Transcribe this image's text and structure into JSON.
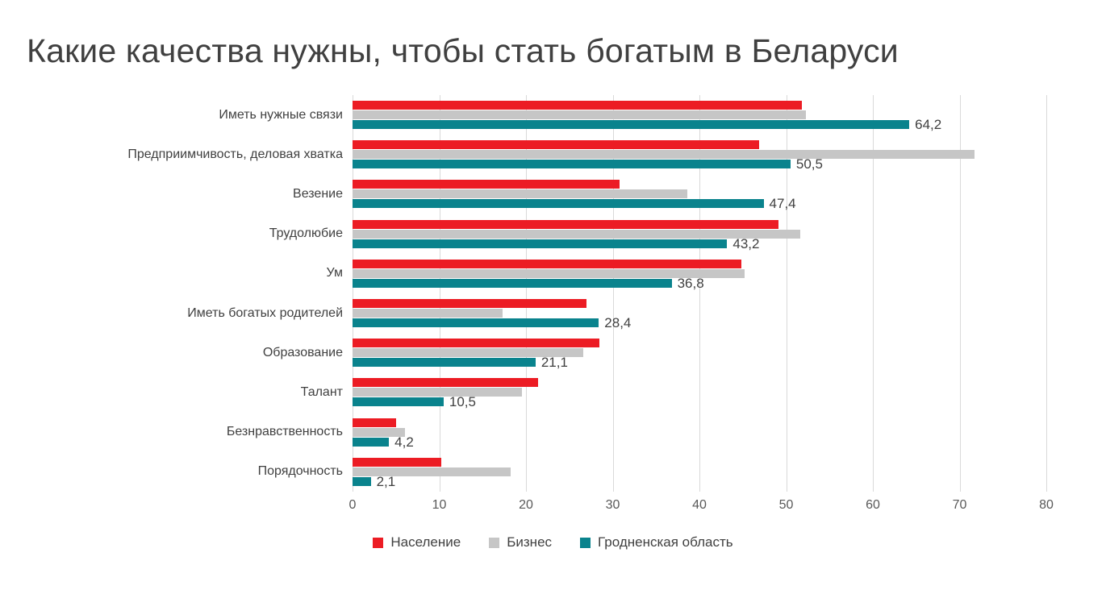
{
  "title": "Какие качества нужны, чтобы стать богатым в Беларуси",
  "colors": {
    "naselenie": "#ec1c24",
    "biznes": "#c6c6c6",
    "grodno": "#0a838d",
    "gridline": "#d9d9d9",
    "title_text": "#404040",
    "axis_text": "#595959"
  },
  "chart_data": {
    "type": "bar",
    "orientation": "horizontal",
    "title": "Какие качества нужны, чтобы стать богатым в Беларуси",
    "categories": [
      "Иметь нужные связи",
      "Предприимчивость, деловая хватка",
      "Везение",
      "Трудолюбие",
      "Ум",
      "Иметь богатых родителей",
      "Образование",
      "Талант",
      "Безнравственность",
      "Порядочность"
    ],
    "series": [
      {
        "name": "Население",
        "color": "#ec1c24",
        "values": [
          51.8,
          46.9,
          30.8,
          49.1,
          44.8,
          27.0,
          28.5,
          21.4,
          5.0,
          10.2
        ]
      },
      {
        "name": "Бизнес",
        "color": "#c6c6c6",
        "values": [
          52.3,
          71.7,
          38.6,
          51.6,
          45.2,
          17.3,
          26.6,
          19.5,
          6.0,
          18.2
        ]
      },
      {
        "name": "Гродненская область",
        "color": "#0a838d",
        "values": [
          64.2,
          50.5,
          47.4,
          43.2,
          36.8,
          28.4,
          21.1,
          10.5,
          4.2,
          2.1
        ],
        "data_labels": [
          "64,2",
          "50,5",
          "47,4",
          "43,2",
          "36,8",
          "28,4",
          "21,1",
          "10,5",
          "4,2",
          "2,1"
        ]
      }
    ],
    "xlabel": "",
    "ylabel": "",
    "xlim": [
      0,
      80
    ],
    "xticks": [
      0,
      10,
      20,
      30,
      40,
      50,
      60,
      70,
      80
    ],
    "xtick_labels": [
      "0",
      "10",
      "20",
      "30",
      "40",
      "50",
      "60",
      "70",
      "80"
    ],
    "grid": true,
    "legend_position": "bottom"
  }
}
